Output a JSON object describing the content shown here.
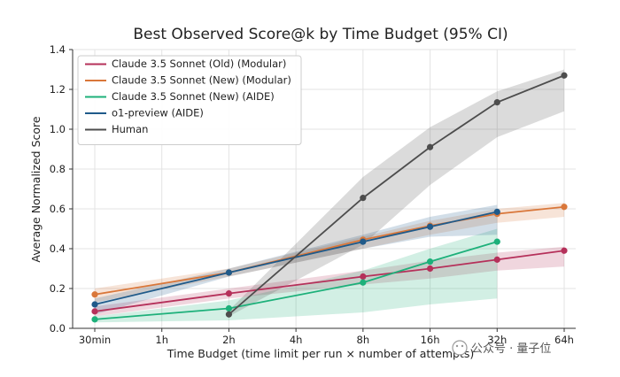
{
  "chart_data": {
    "type": "line",
    "title": "Best Observed Score@k by Time Budget (95% CI)",
    "xlabel": "Time Budget (time limit per run × number of attempts)",
    "ylabel": "Average Normalized Score",
    "categories": [
      "30min",
      "1h",
      "2h",
      "4h",
      "8h",
      "16h",
      "32h",
      "64h"
    ],
    "ylim": [
      0,
      1.4
    ],
    "yticks": [
      "0.0",
      "0.2",
      "0.4",
      "0.6",
      "0.8",
      "1.0",
      "1.2",
      "1.4"
    ],
    "grid": true,
    "legend_position": "top-left",
    "series": [
      {
        "name": "Claude 3.5 Sonnet (Old) (Modular)",
        "color": "#b5305a",
        "points": [
          [
            0,
            0.085
          ],
          [
            2,
            0.175
          ],
          [
            4,
            0.26
          ],
          [
            5,
            0.3
          ],
          [
            6,
            0.345
          ],
          [
            7,
            0.39
          ]
        ],
        "ci_lower": [
          0.06,
          0.15,
          0.22,
          0.25,
          0.29,
          0.31
        ],
        "ci_upper": [
          0.11,
          0.2,
          0.29,
          0.34,
          0.38,
          0.41
        ]
      },
      {
        "name": "Claude 3.5 Sonnet (New) (Modular)",
        "color": "#d9773a",
        "points": [
          [
            0,
            0.17
          ],
          [
            2,
            0.28
          ],
          [
            4,
            0.445
          ],
          [
            5,
            0.515
          ],
          [
            6,
            0.575
          ],
          [
            7,
            0.61
          ]
        ],
        "ci_lower": [
          0.13,
          0.26,
          0.4,
          0.47,
          0.53,
          0.56
        ],
        "ci_upper": [
          0.2,
          0.3,
          0.46,
          0.54,
          0.6,
          0.63
        ]
      },
      {
        "name": "Claude 3.5 Sonnet (New) (AIDE)",
        "color": "#1db07a",
        "points": [
          [
            0,
            0.045
          ],
          [
            2,
            0.1
          ],
          [
            4,
            0.23
          ],
          [
            5,
            0.335
          ],
          [
            6,
            0.435
          ]
        ],
        "ci_lower": [
          0.03,
          0.04,
          0.08,
          0.12,
          0.15
        ],
        "ci_upper": [
          0.06,
          0.14,
          0.29,
          0.4,
          0.5
        ]
      },
      {
        "name": "o1-preview (AIDE)",
        "color": "#1f5a8a",
        "points": [
          [
            0,
            0.12
          ],
          [
            2,
            0.28
          ],
          [
            4,
            0.435
          ],
          [
            5,
            0.51
          ],
          [
            6,
            0.585
          ]
        ],
        "ci_lower": [
          0.07,
          0.26,
          0.4,
          0.46,
          0.47
        ],
        "ci_upper": [
          0.15,
          0.3,
          0.47,
          0.56,
          0.62
        ]
      },
      {
        "name": "Human",
        "color": "#4d4d4d",
        "points": [
          [
            2,
            0.07
          ],
          [
            4,
            0.655
          ],
          [
            5,
            0.91
          ],
          [
            6,
            1.135
          ],
          [
            7,
            1.27
          ]
        ],
        "ci_lower": [
          0.06,
          0.42,
          0.72,
          0.96,
          1.09
        ],
        "ci_upper": [
          0.09,
          0.76,
          1.01,
          1.19,
          1.3
        ]
      }
    ]
  },
  "watermark": {
    "text": "公众号 · 量子位"
  }
}
